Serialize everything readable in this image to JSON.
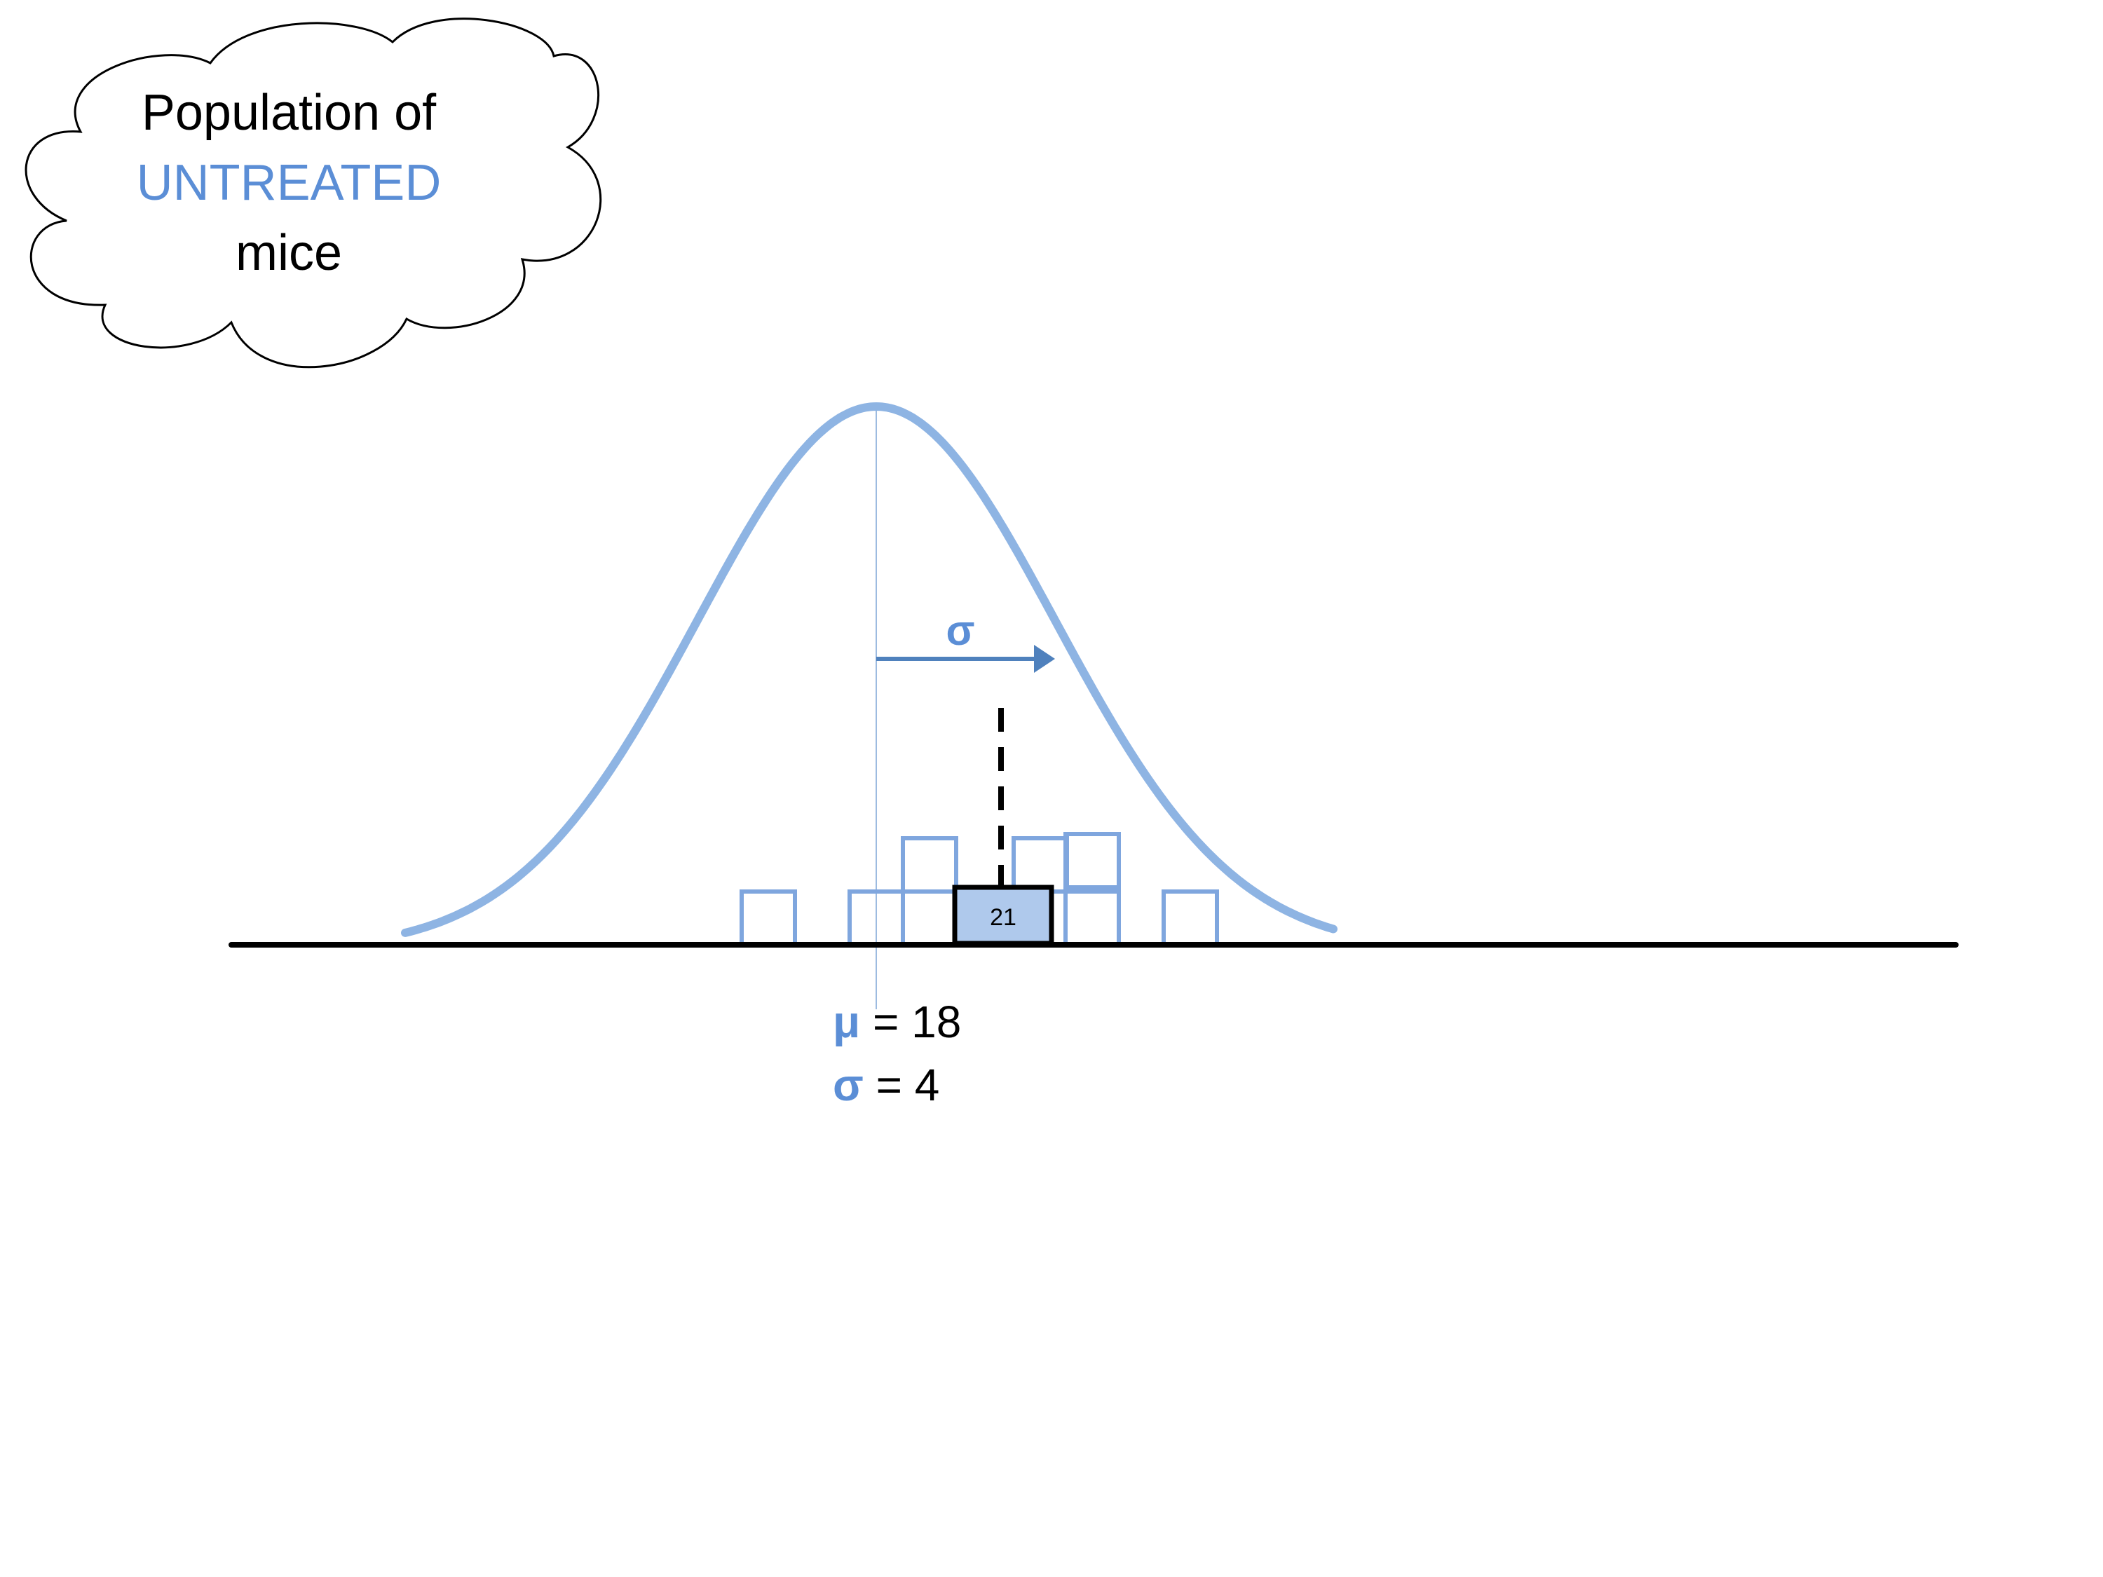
{
  "cloud": {
    "line1": "Population of",
    "line2": "UNTREATED",
    "line3": "mice"
  },
  "arrow_label": "σ",
  "stats": {
    "mu_symbol": "μ",
    "mu_value": " = 18",
    "sigma_symbol": "σ",
    "sigma_value": " = 4"
  },
  "highlight_sample": {
    "value": 21,
    "label": "21"
  },
  "distribution": {
    "mean": 18,
    "sd": 4
  },
  "colors": {
    "accent_blue": "#5B8ED6",
    "curve_blue": "#8EB4E3",
    "box_outline_blue": "#7FA6DE",
    "highlight_fill": "#AFC9EC",
    "axis": "#000000",
    "text": "#000000",
    "arrow": "#4F81BD"
  }
}
